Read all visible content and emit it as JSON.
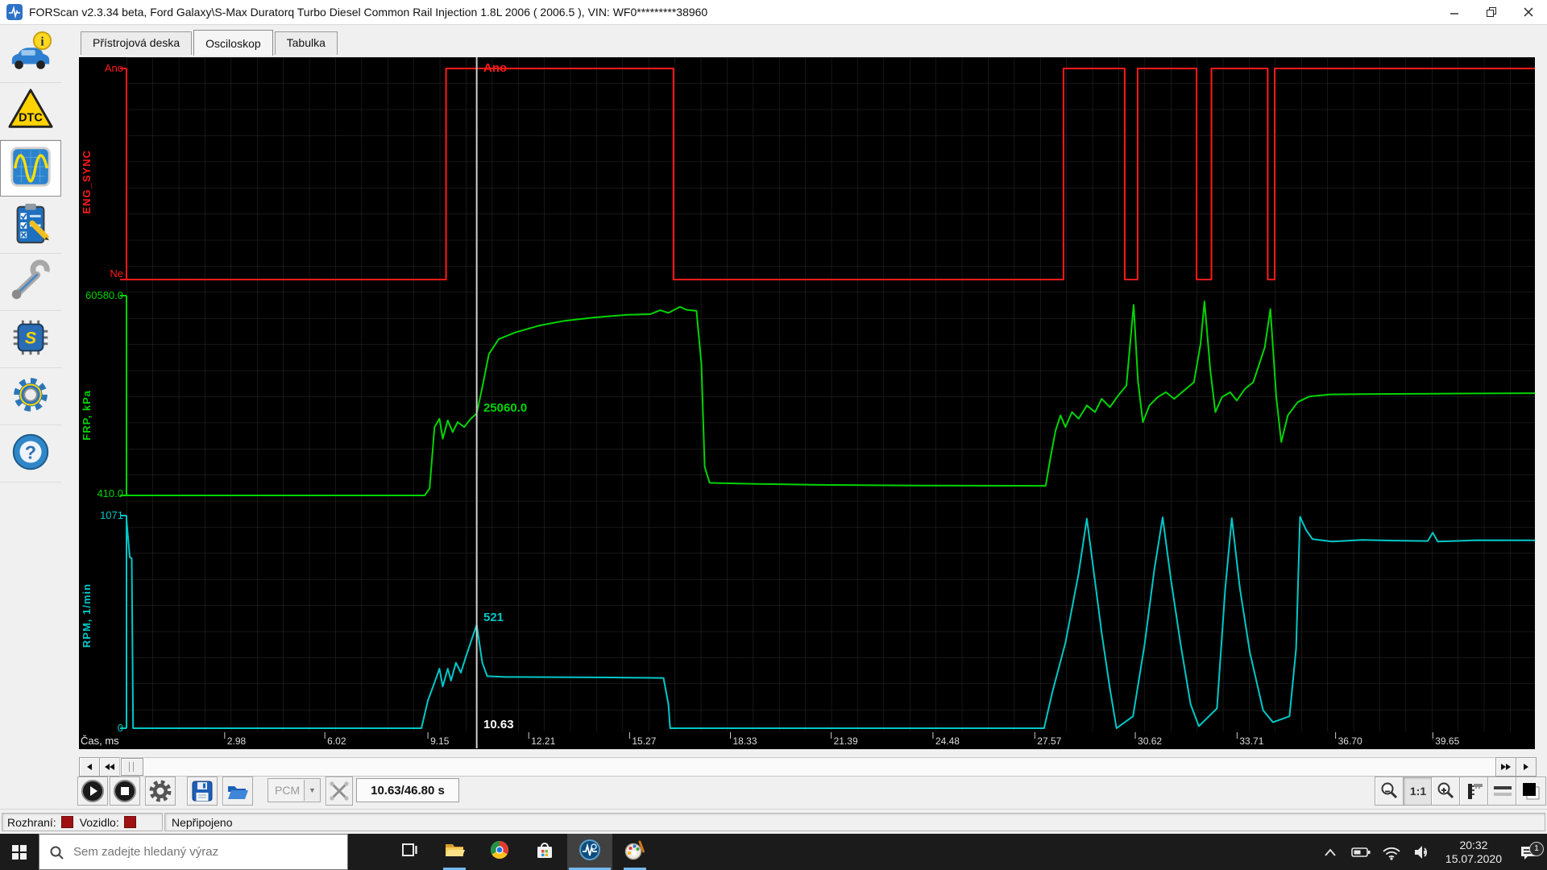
{
  "window": {
    "title": "FORScan v2.3.34 beta, Ford Galaxy\\S-Max Duratorq Turbo Diesel Common Rail Injection 1.8L 2006 ( 2006.5 ), VIN: WF0*********38960"
  },
  "tabs": [
    {
      "label": "Přístrojová deska",
      "active": false
    },
    {
      "label": "Osciloskop",
      "active": true
    },
    {
      "label": "Tabulka",
      "active": false
    }
  ],
  "sidebar": {
    "items": [
      {
        "name": "vehicle-info",
        "icon": "car-info-icon",
        "active": false
      },
      {
        "name": "dtc",
        "icon": "dtc-icon",
        "active": false
      },
      {
        "name": "oscilloscope",
        "icon": "oscilloscope-icon",
        "active": true
      },
      {
        "name": "tests",
        "icon": "tests-icon",
        "active": false
      },
      {
        "name": "service",
        "icon": "wrench-icon",
        "active": false
      },
      {
        "name": "configuration",
        "icon": "chip-icon",
        "active": false
      },
      {
        "name": "settings",
        "icon": "gear-icon",
        "active": false
      },
      {
        "name": "help",
        "icon": "help-icon",
        "active": false
      }
    ]
  },
  "oscilloscope": {
    "channels": [
      {
        "name": "ENG_SYNC",
        "color": "#ff1a1a",
        "high_label": "Ano",
        "low_label": "Ne",
        "cursor_value": "Ano"
      },
      {
        "name": "FRP, kPa",
        "color": "#00d500",
        "high_label": "60580.0",
        "low_label": "410.0",
        "cursor_value": "25060.0"
      },
      {
        "name": "RPM, 1/min",
        "color": "#00c8c8",
        "high_label": "1071",
        "low_label": "0",
        "cursor_value": "521"
      }
    ],
    "x_axis": {
      "label": "Čas, ms",
      "ticks": [
        "2.98",
        "6.02",
        "9.15",
        "12.21",
        "15.27",
        "18.33",
        "21.39",
        "24.48",
        "27.57",
        "30.62",
        "33.71",
        "36.70",
        "39.65"
      ],
      "cursor_time": "10.63"
    }
  },
  "chart_data": {
    "type": "line",
    "x_unit": "s",
    "x_range": [
      0,
      42.75
    ],
    "series": [
      {
        "name": "ENG_SYNC",
        "unit": "",
        "levels": [
          "Ne",
          "Ano"
        ],
        "y_range": [
          0,
          1
        ],
        "points": [
          [
            0,
            0
          ],
          [
            9.7,
            0
          ],
          [
            9.7,
            1
          ],
          [
            16.6,
            1
          ],
          [
            16.6,
            0
          ],
          [
            28.44,
            0
          ],
          [
            28.44,
            1
          ],
          [
            30.3,
            1
          ],
          [
            30.3,
            0
          ],
          [
            30.69,
            0
          ],
          [
            30.69,
            1
          ],
          [
            32.48,
            1
          ],
          [
            32.48,
            0
          ],
          [
            32.93,
            0
          ],
          [
            32.93,
            1
          ],
          [
            34.64,
            1
          ],
          [
            34.64,
            0
          ],
          [
            34.85,
            0
          ],
          [
            34.85,
            1
          ],
          [
            42.75,
            1
          ]
        ]
      },
      {
        "name": "FRP",
        "unit": "kPa",
        "y_range": [
          410,
          60580
        ],
        "points": [
          [
            0,
            410
          ],
          [
            9.05,
            410
          ],
          [
            9.2,
            2500
          ],
          [
            9.35,
            21000
          ],
          [
            9.5,
            23500
          ],
          [
            9.6,
            17500
          ],
          [
            9.75,
            23000
          ],
          [
            9.9,
            19500
          ],
          [
            10.05,
            22500
          ],
          [
            10.25,
            21000
          ],
          [
            10.45,
            23500
          ],
          [
            10.63,
            25060
          ],
          [
            10.8,
            33000
          ],
          [
            11,
            43000
          ],
          [
            11.3,
            47500
          ],
          [
            11.8,
            49500
          ],
          [
            12.5,
            51500
          ],
          [
            13.3,
            53000
          ],
          [
            14.2,
            54000
          ],
          [
            15.2,
            54800
          ],
          [
            15.9,
            55000
          ],
          [
            16.2,
            56200
          ],
          [
            16.45,
            55400
          ],
          [
            16.8,
            57200
          ],
          [
            17,
            56300
          ],
          [
            17.3,
            56000
          ],
          [
            17.45,
            40000
          ],
          [
            17.55,
            9000
          ],
          [
            17.7,
            4200
          ],
          [
            19,
            3900
          ],
          [
            21,
            3600
          ],
          [
            24,
            3400
          ],
          [
            27.9,
            3300
          ],
          [
            28.05,
            12000
          ],
          [
            28.2,
            20000
          ],
          [
            28.35,
            24500
          ],
          [
            28.5,
            21000
          ],
          [
            28.7,
            25500
          ],
          [
            28.9,
            23500
          ],
          [
            29.15,
            27500
          ],
          [
            29.4,
            25500
          ],
          [
            29.6,
            29500
          ],
          [
            29.85,
            27000
          ],
          [
            30.1,
            30500
          ],
          [
            30.35,
            33500
          ],
          [
            30.5,
            50000
          ],
          [
            30.57,
            57800
          ],
          [
            30.7,
            35000
          ],
          [
            30.85,
            22500
          ],
          [
            31.05,
            27500
          ],
          [
            31.3,
            30000
          ],
          [
            31.55,
            31500
          ],
          [
            31.8,
            29500
          ],
          [
            32.1,
            32000
          ],
          [
            32.4,
            34500
          ],
          [
            32.6,
            46000
          ],
          [
            32.72,
            58800
          ],
          [
            32.9,
            38000
          ],
          [
            33.05,
            25500
          ],
          [
            33.25,
            30000
          ],
          [
            33.5,
            31500
          ],
          [
            33.7,
            29000
          ],
          [
            33.95,
            32500
          ],
          [
            34.2,
            34500
          ],
          [
            34.55,
            45000
          ],
          [
            34.72,
            56500
          ],
          [
            34.9,
            30000
          ],
          [
            35.05,
            16500
          ],
          [
            35.25,
            24500
          ],
          [
            35.55,
            28500
          ],
          [
            35.9,
            30200
          ],
          [
            36.5,
            30800
          ],
          [
            37.5,
            30900
          ],
          [
            39,
            31000
          ],
          [
            40.5,
            31100
          ],
          [
            42.75,
            31200
          ]
        ]
      },
      {
        "name": "RPM",
        "unit": "1/min",
        "y_range": [
          0,
          1071
        ],
        "points": [
          [
            0,
            1050
          ],
          [
            0.1,
            860
          ],
          [
            0.16,
            855
          ],
          [
            0.2,
            0
          ],
          [
            8.95,
            0
          ],
          [
            9.15,
            140
          ],
          [
            9.35,
            230
          ],
          [
            9.5,
            300
          ],
          [
            9.6,
            210
          ],
          [
            9.75,
            300
          ],
          [
            9.85,
            240
          ],
          [
            10,
            330
          ],
          [
            10.15,
            280
          ],
          [
            10.3,
            360
          ],
          [
            10.63,
            521
          ],
          [
            10.8,
            330
          ],
          [
            10.95,
            262
          ],
          [
            11.5,
            258
          ],
          [
            13,
            257
          ],
          [
            15,
            255
          ],
          [
            16.3,
            253
          ],
          [
            16.45,
            120
          ],
          [
            16.5,
            0
          ],
          [
            27.85,
            0
          ],
          [
            28.1,
            180
          ],
          [
            28.5,
            430
          ],
          [
            28.9,
            780
          ],
          [
            29.15,
            1055
          ],
          [
            29.35,
            800
          ],
          [
            29.6,
            480
          ],
          [
            29.85,
            200
          ],
          [
            30.05,
            0
          ],
          [
            30.55,
            60
          ],
          [
            30.9,
            420
          ],
          [
            31.2,
            800
          ],
          [
            31.45,
            1062
          ],
          [
            31.7,
            750
          ],
          [
            32,
            420
          ],
          [
            32.3,
            120
          ],
          [
            32.55,
            10
          ],
          [
            33.1,
            100
          ],
          [
            33.35,
            700
          ],
          [
            33.55,
            1058
          ],
          [
            33.8,
            700
          ],
          [
            34.1,
            380
          ],
          [
            34.5,
            90
          ],
          [
            34.8,
            30
          ],
          [
            35.3,
            60
          ],
          [
            35.5,
            400
          ],
          [
            35.62,
            1065
          ],
          [
            35.8,
            1000
          ],
          [
            36,
            952
          ],
          [
            36.6,
            940
          ],
          [
            37.5,
            948
          ],
          [
            38.5,
            945
          ],
          [
            39.5,
            943
          ],
          [
            39.65,
            985
          ],
          [
            39.8,
            940
          ],
          [
            41,
            947
          ],
          [
            42.75,
            946
          ]
        ]
      }
    ]
  },
  "toolbar": {
    "module_select": "PCM",
    "time_display": "10.63/46.80 s",
    "zoom_ratio": "1:1"
  },
  "statusbar": {
    "interface_label": "Rozhraní:",
    "vehicle_label": "Vozidlo:",
    "status": "Nepřipojeno"
  },
  "taskbar": {
    "search_placeholder": "Sem zadejte hledaný výraz",
    "apps": [
      {
        "name": "task-view",
        "open": false,
        "active": false
      },
      {
        "name": "file-explorer",
        "open": true,
        "active": false
      },
      {
        "name": "chrome",
        "open": false,
        "active": false
      },
      {
        "name": "store",
        "open": false,
        "active": false
      },
      {
        "name": "forscan",
        "open": true,
        "active": true
      },
      {
        "name": "paint",
        "open": true,
        "active": false
      }
    ],
    "clock": {
      "time": "20:32",
      "date": "15.07.2020"
    },
    "notification_count": "1"
  }
}
